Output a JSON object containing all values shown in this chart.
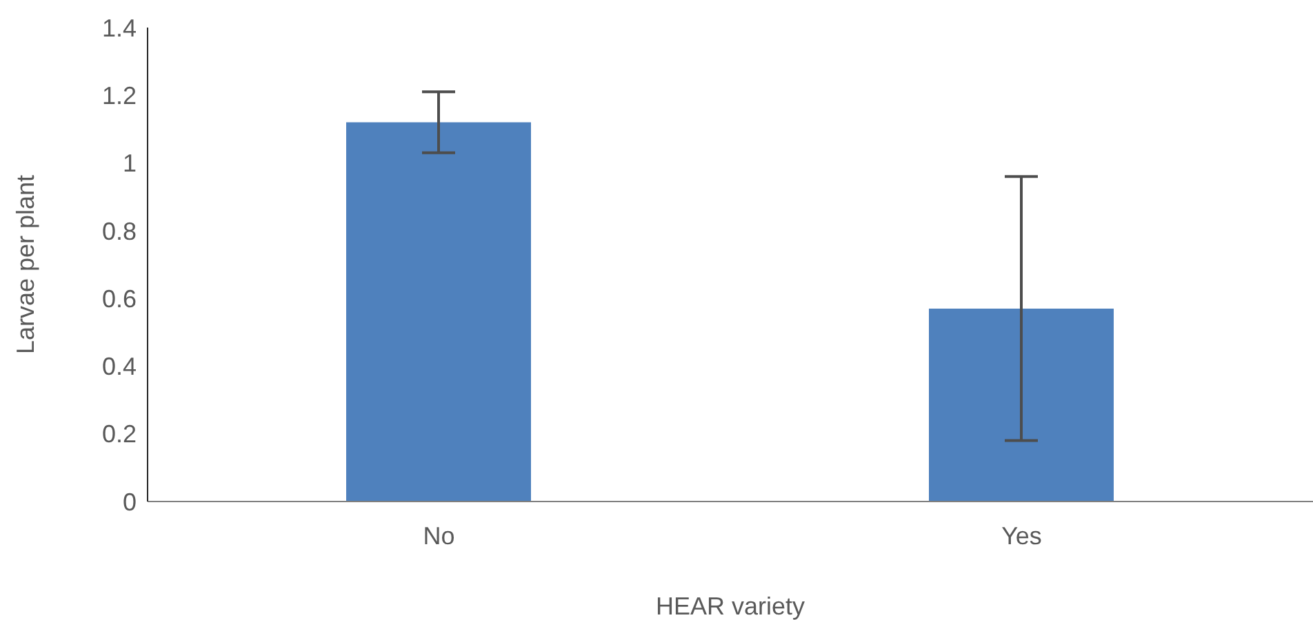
{
  "chart_data": {
    "type": "bar",
    "xlabel": "HEAR variety",
    "ylabel": "Larvae per plant",
    "categories": [
      "No",
      "Yes"
    ],
    "values": [
      1.12,
      0.57
    ],
    "errors": [
      0.09,
      0.39
    ],
    "color": "#4f81bd",
    "ylim": [
      0,
      1.4
    ],
    "yticks": [
      0,
      0.2,
      0.4,
      0.6,
      0.8,
      1,
      1.2,
      1.4
    ]
  }
}
